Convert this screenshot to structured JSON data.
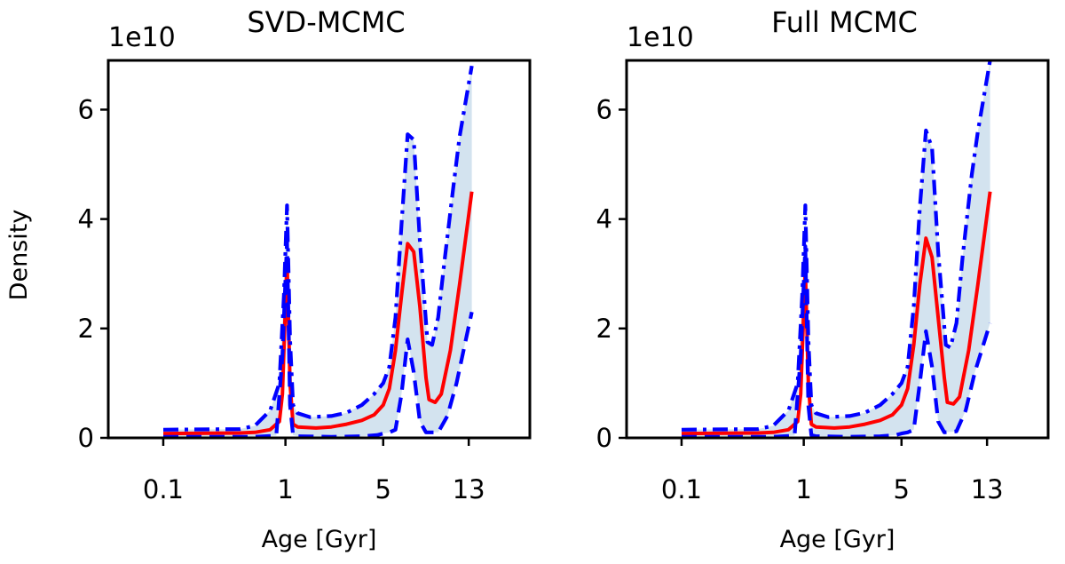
{
  "figure": {
    "shared_ylabel": "Density"
  },
  "chart_data": [
    {
      "type": "line",
      "title": "SVD-MCMC",
      "xlabel": "Age [Gyr]",
      "ylabel": "Density",
      "y_offset_text": "1e10",
      "xlim": [
        -0.18,
        1.2
      ],
      "ylim": [
        0,
        6.9
      ],
      "xticks": [
        {
          "pos": 0.0,
          "label": "0.1"
        },
        {
          "pos": 0.4,
          "label": "1"
        },
        {
          "pos": 0.72,
          "label": "5"
        },
        {
          "pos": 1.0,
          "label": "13"
        }
      ],
      "yticks": [
        {
          "value": 0,
          "label": "0"
        },
        {
          "value": 2,
          "label": "2"
        },
        {
          "value": 4,
          "label": "4"
        },
        {
          "value": 6,
          "label": "6"
        }
      ],
      "series": [
        {
          "name": "upper (dash-dot)",
          "color": "#0000ff",
          "style": "dashdot",
          "x": [
            0.0,
            0.25,
            0.3,
            0.35,
            0.38,
            0.395,
            0.405,
            0.415,
            0.425,
            0.44,
            0.48,
            0.55,
            0.6,
            0.65,
            0.69,
            0.72,
            0.74,
            0.76,
            0.78,
            0.8,
            0.82,
            0.84,
            0.865,
            0.88,
            0.9,
            0.92,
            0.95,
            0.97,
            1.01
          ],
          "values": [
            0.15,
            0.16,
            0.22,
            0.5,
            1.0,
            2.6,
            4.25,
            1.8,
            0.6,
            0.45,
            0.38,
            0.4,
            0.46,
            0.6,
            0.8,
            1.0,
            1.3,
            2.2,
            3.9,
            5.55,
            5.45,
            3.6,
            1.75,
            1.7,
            2.2,
            3.2,
            4.6,
            5.5,
            6.8
          ]
        },
        {
          "name": "median",
          "color": "#ff0000",
          "style": "solid",
          "x": [
            0.0,
            0.25,
            0.3,
            0.35,
            0.38,
            0.39,
            0.405,
            0.415,
            0.425,
            0.44,
            0.5,
            0.55,
            0.6,
            0.65,
            0.69,
            0.72,
            0.74,
            0.76,
            0.78,
            0.8,
            0.82,
            0.84,
            0.86,
            0.87,
            0.89,
            0.91,
            0.94,
            0.97,
            1.01
          ],
          "values": [
            0.08,
            0.09,
            0.1,
            0.15,
            0.3,
            0.8,
            3.25,
            1.0,
            0.25,
            0.2,
            0.18,
            0.2,
            0.25,
            0.32,
            0.42,
            0.6,
            0.9,
            1.6,
            2.6,
            3.55,
            3.4,
            2.4,
            1.1,
            0.7,
            0.65,
            0.8,
            1.6,
            2.8,
            4.5
          ]
        },
        {
          "name": "lower (dashed)",
          "color": "#0000ff",
          "style": "dashed",
          "x": [
            0.0,
            0.3,
            0.37,
            0.39,
            0.405,
            0.415,
            0.425,
            0.44,
            0.55,
            0.65,
            0.7,
            0.72,
            0.74,
            0.76,
            0.78,
            0.8,
            0.82,
            0.84,
            0.86,
            0.9,
            0.93,
            0.96,
            1.01
          ],
          "values": [
            0.02,
            0.02,
            0.04,
            1.5,
            3.6,
            0.6,
            0.05,
            0.03,
            0.02,
            0.03,
            0.05,
            0.08,
            0.1,
            0.15,
            0.8,
            1.8,
            1.2,
            0.3,
            0.1,
            0.1,
            0.4,
            1.0,
            2.3
          ]
        }
      ]
    },
    {
      "type": "line",
      "title": "Full MCMC",
      "xlabel": "Age [Gyr]",
      "ylabel": "",
      "y_offset_text": "1e10",
      "xlim": [
        -0.18,
        1.2
      ],
      "ylim": [
        0,
        6.9
      ],
      "xticks": [
        {
          "pos": 0.0,
          "label": "0.1"
        },
        {
          "pos": 0.4,
          "label": "1"
        },
        {
          "pos": 0.72,
          "label": "5"
        },
        {
          "pos": 1.0,
          "label": "13"
        }
      ],
      "yticks": [
        {
          "value": 0,
          "label": "0"
        },
        {
          "value": 2,
          "label": "2"
        },
        {
          "value": 4,
          "label": "4"
        },
        {
          "value": 6,
          "label": "6"
        }
      ],
      "series": [
        {
          "name": "upper (dash-dot)",
          "color": "#0000ff",
          "style": "dashdot",
          "x": [
            0.0,
            0.25,
            0.3,
            0.35,
            0.38,
            0.395,
            0.405,
            0.415,
            0.425,
            0.44,
            0.48,
            0.55,
            0.6,
            0.65,
            0.69,
            0.72,
            0.74,
            0.76,
            0.78,
            0.8,
            0.82,
            0.84,
            0.865,
            0.88,
            0.9,
            0.92,
            0.95,
            0.97,
            1.01
          ],
          "values": [
            0.15,
            0.16,
            0.22,
            0.5,
            1.0,
            2.6,
            4.25,
            1.8,
            0.6,
            0.45,
            0.38,
            0.4,
            0.46,
            0.6,
            0.8,
            1.0,
            1.3,
            2.4,
            4.2,
            5.62,
            5.3,
            3.4,
            1.7,
            1.65,
            2.1,
            3.3,
            4.8,
            5.6,
            6.9
          ]
        },
        {
          "name": "median",
          "color": "#ff0000",
          "style": "solid",
          "x": [
            0.0,
            0.25,
            0.3,
            0.35,
            0.38,
            0.39,
            0.405,
            0.415,
            0.425,
            0.44,
            0.5,
            0.55,
            0.6,
            0.65,
            0.69,
            0.72,
            0.74,
            0.76,
            0.78,
            0.8,
            0.82,
            0.84,
            0.86,
            0.87,
            0.89,
            0.91,
            0.94,
            0.97,
            1.01
          ],
          "values": [
            0.08,
            0.09,
            0.1,
            0.15,
            0.3,
            0.8,
            3.1,
            1.0,
            0.25,
            0.2,
            0.18,
            0.2,
            0.25,
            0.32,
            0.42,
            0.6,
            0.9,
            1.7,
            2.8,
            3.65,
            3.3,
            2.2,
            1.1,
            0.65,
            0.62,
            0.75,
            1.6,
            2.8,
            4.5
          ]
        },
        {
          "name": "lower (dashed)",
          "color": "#0000ff",
          "style": "dashed",
          "x": [
            0.0,
            0.3,
            0.37,
            0.39,
            0.405,
            0.415,
            0.425,
            0.44,
            0.55,
            0.65,
            0.7,
            0.72,
            0.74,
            0.76,
            0.78,
            0.8,
            0.82,
            0.84,
            0.86,
            0.9,
            0.93,
            0.96,
            1.01
          ],
          "values": [
            0.02,
            0.02,
            0.04,
            1.5,
            3.5,
            0.6,
            0.05,
            0.03,
            0.02,
            0.03,
            0.05,
            0.08,
            0.1,
            0.15,
            1.0,
            1.95,
            1.3,
            0.3,
            0.1,
            0.12,
            0.5,
            1.2,
            2.1
          ]
        }
      ]
    }
  ]
}
